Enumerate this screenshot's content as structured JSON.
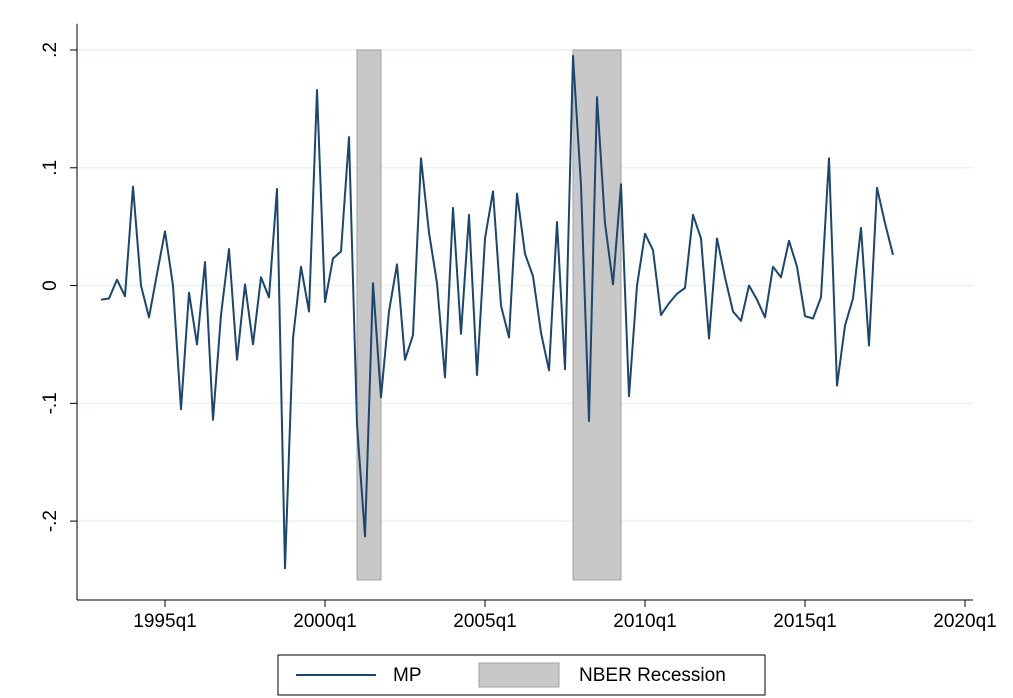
{
  "chart_data": {
    "type": "line",
    "x": [
      "1993q1",
      "1993q2",
      "1993q3",
      "1993q4",
      "1994q1",
      "1994q2",
      "1994q3",
      "1994q4",
      "1995q1",
      "1995q2",
      "1995q3",
      "1995q4",
      "1996q1",
      "1996q2",
      "1996q3",
      "1996q4",
      "1997q1",
      "1997q2",
      "1997q3",
      "1997q4",
      "1998q1",
      "1998q2",
      "1998q3",
      "1998q4",
      "1999q1",
      "1999q2",
      "1999q3",
      "1999q4",
      "2000q1",
      "2000q2",
      "2000q3",
      "2000q4",
      "2001q1",
      "2001q2",
      "2001q3",
      "2001q4",
      "2002q1",
      "2002q2",
      "2002q3",
      "2002q4",
      "2003q1",
      "2003q2",
      "2003q3",
      "2003q4",
      "2004q1",
      "2004q2",
      "2004q3",
      "2004q4",
      "2005q1",
      "2005q2",
      "2005q3",
      "2005q4",
      "2006q1",
      "2006q2",
      "2006q3",
      "2006q4",
      "2007q1",
      "2007q2",
      "2007q3",
      "2007q4",
      "2008q1",
      "2008q2",
      "2008q3",
      "2008q4",
      "2009q1",
      "2009q2",
      "2009q3",
      "2009q4",
      "2010q1",
      "2010q2",
      "2010q3",
      "2010q4",
      "2011q1",
      "2011q2",
      "2011q3",
      "2011q4",
      "2012q1",
      "2012q2",
      "2012q3",
      "2012q4",
      "2013q1",
      "2013q2",
      "2013q3",
      "2013q4",
      "2014q1",
      "2014q2",
      "2014q3",
      "2014q4",
      "2015q1",
      "2015q2",
      "2015q3",
      "2015q4",
      "2016q1",
      "2016q2",
      "2016q3",
      "2016q4",
      "2017q1",
      "2017q2",
      "2017q3",
      "2017q4"
    ],
    "series": [
      {
        "name": "MP",
        "color": "#1a476f",
        "values": [
          -0.012,
          -0.011,
          0.005,
          -0.009,
          0.084,
          0.0,
          -0.027,
          0.01,
          0.046,
          0.0,
          -0.105,
          -0.006,
          -0.05,
          0.02,
          -0.114,
          -0.025,
          0.031,
          -0.063,
          0.001,
          -0.05,
          0.007,
          -0.01,
          0.082,
          -0.24,
          -0.045,
          0.016,
          -0.022,
          0.166,
          -0.014,
          0.023,
          0.029,
          0.126,
          -0.118,
          -0.213,
          0.002,
          -0.095,
          -0.022,
          0.018,
          -0.063,
          -0.042,
          0.108,
          0.045,
          0.002,
          -0.078,
          0.066,
          -0.041,
          0.06,
          -0.076,
          0.04,
          0.08,
          -0.017,
          -0.044,
          0.078,
          0.027,
          0.008,
          -0.04,
          -0.072,
          0.054,
          -0.071,
          0.195,
          0.085,
          -0.115,
          0.16,
          0.053,
          0.001,
          0.086,
          -0.094,
          0.0,
          0.044,
          0.03,
          -0.025,
          -0.015,
          -0.007,
          -0.002,
          0.06,
          0.04,
          -0.045,
          0.04,
          0.007,
          -0.022,
          -0.03,
          0.0,
          -0.012,
          -0.027,
          0.016,
          0.007,
          0.038,
          0.016,
          -0.026,
          -0.028,
          -0.01,
          0.108,
          -0.085,
          -0.034,
          -0.011,
          0.049,
          -0.051,
          0.083,
          0.053,
          0.026
        ]
      }
    ],
    "recessions": {
      "name": "NBER Recession",
      "color": "#c8c8c8",
      "ylim": [
        -0.25,
        0.2
      ],
      "periods": [
        [
          "2001q1",
          "2001q4"
        ],
        [
          "2007q4",
          "2009q2"
        ]
      ]
    },
    "xlim": [
      "1992q2",
      "2020q2"
    ],
    "xticks": [
      "1995q1",
      "2000q1",
      "2005q1",
      "2010q1",
      "2015q1",
      "2020q1"
    ],
    "ylim": [
      -0.267,
      0.218
    ],
    "yticks": [
      {
        "value": -0.2,
        "label": "-.2"
      },
      {
        "value": -0.1,
        "label": "-.1"
      },
      0,
      {
        "value": 0.1,
        "label": ".1"
      },
      {
        "value": 0.2,
        "label": ".2"
      }
    ],
    "grid": true
  }
}
